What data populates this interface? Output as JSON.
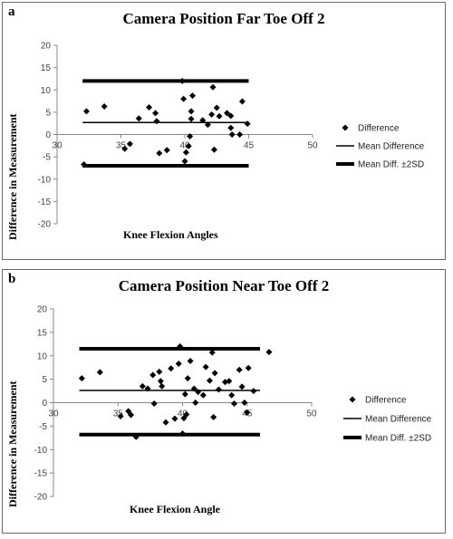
{
  "chart_data": [
    {
      "type": "scatter",
      "panel_label": "a",
      "title": "Camera Position Far Toe Off 2",
      "xlabel": "Knee Flexion Angles",
      "ylabel": "Difference  in Measurement",
      "xlim": [
        30,
        50
      ],
      "ylim": [
        -20,
        20
      ],
      "x_ticks": [
        "30",
        "35",
        "40",
        "45",
        "50"
      ],
      "y_ticks": [
        "20",
        "15",
        "10",
        "5",
        "0",
        "-5",
        "-10",
        "-15",
        "-20"
      ],
      "grid": false,
      "legend": "right",
      "series": [
        {
          "name": "Difference",
          "marker": "diamond",
          "points": [
            [
              32.1,
              -6.7
            ],
            [
              32.3,
              5.2
            ],
            [
              33.7,
              6.3
            ],
            [
              35.3,
              -3.2
            ],
            [
              35.7,
              -2.1
            ],
            [
              36.4,
              3.6
            ],
            [
              37.2,
              6.1
            ],
            [
              37.7,
              4.8
            ],
            [
              37.8,
              3.0
            ],
            [
              38.0,
              -4.2
            ],
            [
              38.6,
              -3.5
            ],
            [
              39.8,
              12.0
            ],
            [
              39.9,
              8.0
            ],
            [
              40.0,
              -6.0
            ],
            [
              40.1,
              -4.0
            ],
            [
              40.3,
              -2.6
            ],
            [
              40.4,
              -0.4
            ],
            [
              40.5,
              3.5
            ],
            [
              40.5,
              5.2
            ],
            [
              40.6,
              8.7
            ],
            [
              41.4,
              3.2
            ],
            [
              41.8,
              2.2
            ],
            [
              42.1,
              4.5
            ],
            [
              42.2,
              10.6
            ],
            [
              42.3,
              -3.4
            ],
            [
              42.5,
              6.0
            ],
            [
              42.7,
              4.1
            ],
            [
              43.3,
              4.8
            ],
            [
              43.6,
              4.2
            ],
            [
              43.6,
              1.5
            ],
            [
              43.7,
              0.0
            ],
            [
              44.3,
              0.0
            ],
            [
              44.5,
              7.4
            ],
            [
              44.9,
              2.4
            ]
          ]
        },
        {
          "name": "Mean Difference",
          "value": 2.7
        },
        {
          "name": "Mean Diff. ±2SD",
          "values": [
            12.0,
            -7.0
          ]
        }
      ],
      "line_x_range": [
        32,
        45
      ],
      "legend_labels": [
        "Difference",
        "Mean Difference",
        "Mean Diff. ±2SD"
      ]
    },
    {
      "type": "scatter",
      "panel_label": "b",
      "title": "Camera Position Near Toe Off 2",
      "xlabel": "Knee Flexion Angle",
      "ylabel": "Difference  in Measurement",
      "xlim": [
        30,
        50
      ],
      "ylim": [
        -20,
        20
      ],
      "x_ticks": [
        "30",
        "35",
        "40",
        "45",
        "50"
      ],
      "y_ticks": [
        "20",
        "15",
        "10",
        "5",
        "0",
        "-5",
        "-10",
        "-15",
        "-20"
      ],
      "grid": false,
      "legend": "right",
      "series": [
        {
          "name": "Difference",
          "marker": "diamond",
          "points": [
            [
              32.2,
              5.2
            ],
            [
              33.6,
              6.5
            ],
            [
              35.2,
              -2.9
            ],
            [
              35.8,
              -1.8
            ],
            [
              36.0,
              -2.6
            ],
            [
              36.4,
              -7.3
            ],
            [
              36.9,
              3.5
            ],
            [
              37.3,
              3.0
            ],
            [
              37.7,
              5.9
            ],
            [
              37.8,
              -0.2
            ],
            [
              38.2,
              6.6
            ],
            [
              38.3,
              4.6
            ],
            [
              38.4,
              3.5
            ],
            [
              38.7,
              -4.2
            ],
            [
              39.1,
              7.3
            ],
            [
              39.4,
              -3.4
            ],
            [
              39.7,
              8.3
            ],
            [
              39.8,
              12.0
            ],
            [
              40.0,
              -6.6
            ],
            [
              40.1,
              -3.3
            ],
            [
              40.2,
              1.8
            ],
            [
              40.3,
              -2.5
            ],
            [
              40.4,
              5.2
            ],
            [
              40.6,
              8.9
            ],
            [
              40.9,
              3.0
            ],
            [
              41.0,
              0.0
            ],
            [
              41.2,
              2.3
            ],
            [
              41.6,
              1.6
            ],
            [
              41.8,
              7.6
            ],
            [
              42.1,
              4.7
            ],
            [
              42.3,
              10.7
            ],
            [
              42.4,
              -3.1
            ],
            [
              42.5,
              6.3
            ],
            [
              42.8,
              2.8
            ],
            [
              43.3,
              4.4
            ],
            [
              43.6,
              4.6
            ],
            [
              43.8,
              1.6
            ],
            [
              44.0,
              -0.2
            ],
            [
              44.4,
              7.0
            ],
            [
              44.6,
              3.4
            ],
            [
              44.8,
              0.0
            ],
            [
              45.0,
              -2.1
            ],
            [
              45.1,
              7.4
            ],
            [
              45.5,
              2.5
            ],
            [
              46.7,
              10.8
            ]
          ]
        },
        {
          "name": "Mean Difference",
          "value": 2.6
        },
        {
          "name": "Mean Diff. ±2SD",
          "values": [
            11.5,
            -6.8
          ]
        }
      ],
      "line_x_range": [
        32,
        46
      ],
      "legend_labels": [
        "Difference",
        "Mean Difference",
        "Mean Diff. ±2SD"
      ]
    }
  ]
}
